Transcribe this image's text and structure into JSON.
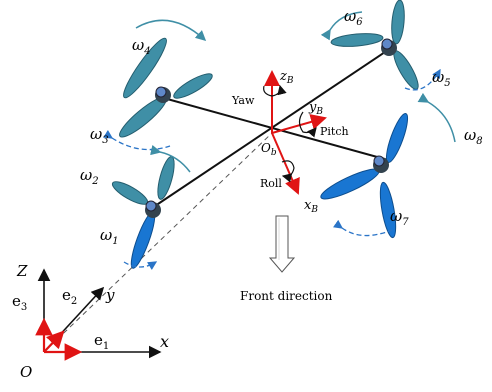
{
  "omegas": [
    {
      "base": "ω",
      "sub": "1"
    },
    {
      "base": "ω",
      "sub": "2"
    },
    {
      "base": "ω",
      "sub": "3"
    },
    {
      "base": "ω",
      "sub": "4"
    },
    {
      "base": "ω",
      "sub": "5"
    },
    {
      "base": "ω",
      "sub": "6"
    },
    {
      "base": "ω",
      "sub": "7"
    },
    {
      "base": "ω",
      "sub": "8"
    }
  ],
  "body_axes": {
    "z": {
      "base": "z",
      "sub": "B"
    },
    "y": {
      "base": "y",
      "sub": "B"
    },
    "x": {
      "base": "x",
      "sub": "B"
    },
    "origin": {
      "base": "O",
      "sub": "b"
    }
  },
  "rotations": {
    "yaw": "Yaw",
    "pitch": "Pitch",
    "roll": "Roll"
  },
  "front_direction": "Front direction",
  "inertial": {
    "Z": "Z",
    "x": "x",
    "y": "y",
    "O": "O",
    "e1": {
      "base": "e",
      "sub": "1"
    },
    "e2": {
      "base": "e",
      "sub": "2"
    },
    "e3": {
      "base": "e",
      "sub": "3"
    }
  },
  "colors": {
    "arm": "#111111",
    "axis_red": "#e01414",
    "dashed_blue": "#2a74c7",
    "teal_blade": "#3f8fa6",
    "blue_blade": "#1976d2",
    "hub": "#33434f"
  }
}
